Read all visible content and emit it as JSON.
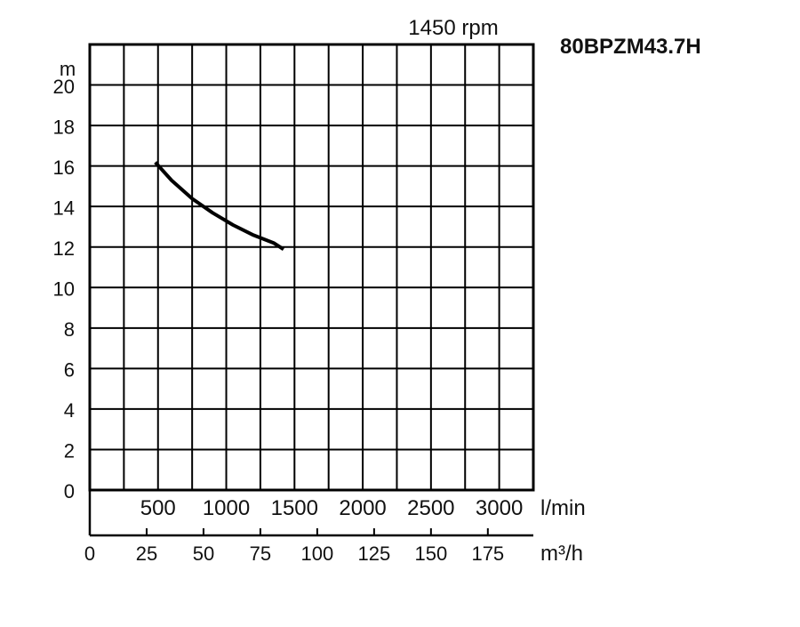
{
  "chart_data": {
    "type": "line",
    "title": "80BPZM43.7H",
    "subtitle": "1450 rpm",
    "ylabel": "m",
    "ylim": [
      0,
      22
    ],
    "yticks": [
      0,
      2,
      4,
      6,
      8,
      10,
      12,
      14,
      16,
      18,
      20
    ],
    "xlim": [
      0,
      3250
    ],
    "x_unit": "l/min",
    "xticks": [
      500,
      1000,
      1500,
      2000,
      2500,
      3000
    ],
    "secondary_x": {
      "unit": "m³/h",
      "ticks": [
        0,
        25,
        50,
        75,
        100,
        125,
        150,
        175
      ],
      "lim": [
        0,
        195
      ]
    },
    "grid": true,
    "series": [
      {
        "x": [
          480,
          600,
          750,
          900,
          1050,
          1200,
          1350,
          1420
        ],
        "y": [
          16.2,
          15.3,
          14.4,
          13.7,
          13.1,
          12.6,
          12.2,
          11.9
        ]
      }
    ]
  }
}
